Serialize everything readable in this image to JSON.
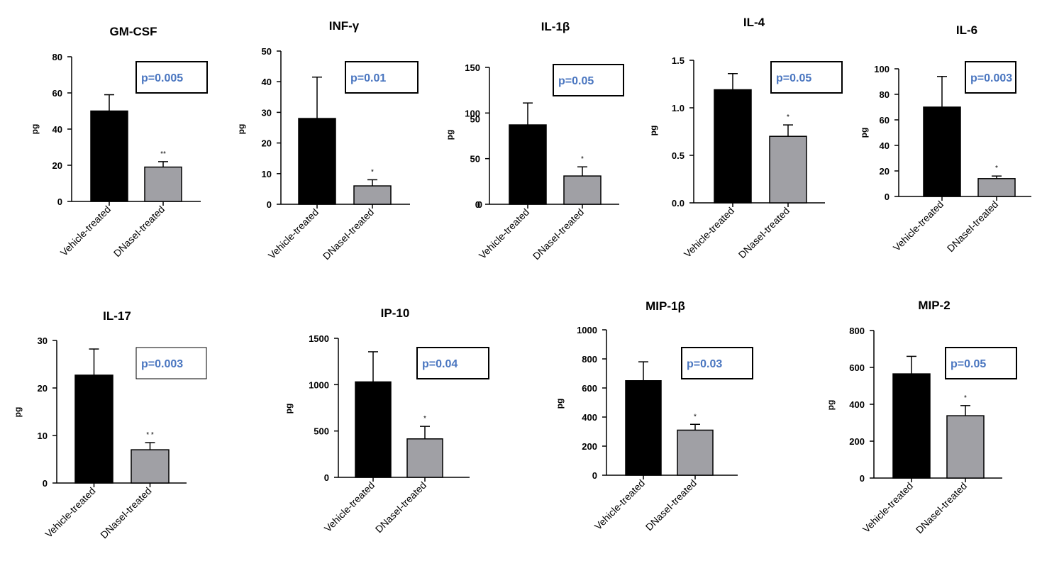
{
  "colors": {
    "vehicle": "#000000",
    "dnase": "#a0a0a5",
    "pvalue_text": "#4a76c0"
  },
  "chart_data": [
    {
      "type": "bar",
      "title": "GM-CSF",
      "ylabel": "pg",
      "ylim": [
        0,
        80
      ],
      "yticks": [
        "0",
        "20",
        "40",
        "60",
        "80"
      ],
      "categories": [
        "Vehicle-treated",
        "DNaseI-treated"
      ],
      "values": [
        50,
        19
      ],
      "errors": [
        9,
        3
      ],
      "significance": [
        "",
        "**"
      ],
      "p_value": "p=0.005"
    },
    {
      "type": "bar",
      "title": "INF-γ",
      "ylabel": "pg",
      "ylim": [
        0,
        50
      ],
      "yticks": [
        "0",
        "10",
        "20",
        "30",
        "40",
        "50"
      ],
      "categories": [
        "Vehicle-treated",
        "DNaseI-treated"
      ],
      "values": [
        28,
        6
      ],
      "errors": [
        13.5,
        2
      ],
      "significance": [
        "",
        "*"
      ],
      "p_value": "p=0.01"
    },
    {
      "type": "bar",
      "title": "IL-1β",
      "ylabel": "pg",
      "ylim": [
        0,
        150
      ],
      "yticks": [
        "0",
        "50",
        "100",
        "150"
      ],
      "yticks_extra": [
        "50",
        "0"
      ],
      "categories": [
        "Vehicle-treated",
        "DNaseI-treated"
      ],
      "values": [
        87,
        31
      ],
      "errors": [
        24,
        10
      ],
      "significance": [
        "",
        "*"
      ],
      "p_value": "p=0.05"
    },
    {
      "type": "bar",
      "title": "IL-4",
      "ylabel": "pg",
      "ylim": [
        0,
        1.5
      ],
      "yticks": [
        "0.0",
        "0.5",
        "1.0",
        "1.5"
      ],
      "categories": [
        "Vehicle-treated",
        "DNaseI-treated"
      ],
      "values": [
        1.19,
        0.7
      ],
      "errors": [
        0.17,
        0.12
      ],
      "significance": [
        "",
        "*"
      ],
      "p_value": "p=0.05"
    },
    {
      "type": "bar",
      "title": "IL-6",
      "ylabel": "pg",
      "ylim": [
        0,
        100
      ],
      "yticks": [
        "0",
        "20",
        "40",
        "60",
        "80",
        "100"
      ],
      "categories": [
        "Vehicle-treated",
        "DNaseI-treated"
      ],
      "values": [
        70,
        14
      ],
      "errors": [
        24,
        2
      ],
      "significance": [
        "",
        "*"
      ],
      "p_value": "p=0.003"
    },
    {
      "type": "bar",
      "title": "IL-17",
      "ylabel": "pg",
      "ylim": [
        0,
        30
      ],
      "yticks": [
        "0",
        "10",
        "20",
        "30"
      ],
      "categories": [
        "Vehicle-treated",
        "DNaseI-treated"
      ],
      "values": [
        22.7,
        7
      ],
      "errors": [
        5.5,
        1.5
      ],
      "significance": [
        "",
        "* *"
      ],
      "p_value": "p=0.003"
    },
    {
      "type": "bar",
      "title": "IP-10",
      "ylabel": "pg",
      "ylim": [
        0,
        1500
      ],
      "yticks": [
        "0",
        "500",
        "1000",
        "1500"
      ],
      "categories": [
        "Vehicle-treated",
        "DNaseI-treated"
      ],
      "values": [
        1030,
        415
      ],
      "errors": [
        325,
        135
      ],
      "significance": [
        "",
        "*"
      ],
      "p_value": "p=0.04"
    },
    {
      "type": "bar",
      "title": "MIP-1β",
      "ylabel": "pg",
      "ylim": [
        0,
        1000
      ],
      "yticks": [
        "0",
        "200",
        "400",
        "600",
        "800",
        "1000"
      ],
      "categories": [
        "Vehicle-treated",
        "DNaseI-treated"
      ],
      "values": [
        650,
        310
      ],
      "errors": [
        130,
        40
      ],
      "significance": [
        "",
        "*"
      ],
      "p_value": "p=0.03"
    },
    {
      "type": "bar",
      "title": "MIP-2",
      "ylabel": "pg",
      "ylim": [
        0,
        800
      ],
      "yticks": [
        "0",
        "200",
        "400",
        "600",
        "800"
      ],
      "categories": [
        "Vehicle-treated",
        "DNaseI-treated"
      ],
      "values": [
        565,
        338
      ],
      "errors": [
        95,
        55
      ],
      "significance": [
        "",
        "*"
      ],
      "p_value": "p=0.05"
    }
  ]
}
